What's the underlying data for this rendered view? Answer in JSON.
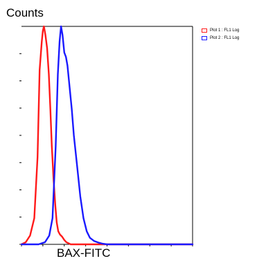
{
  "chart_data": {
    "type": "line",
    "title": "",
    "ylabel": "Counts",
    "xlabel": "BAX-FITC",
    "xlim": [
      0,
      8
    ],
    "ylim": [
      0,
      100
    ],
    "grid": false,
    "legend_position": "top-right",
    "series": [
      {
        "name": "Plot 1 : FL1 Log",
        "color": "#ff1a1a",
        "x": [
          0.0,
          0.2,
          0.4,
          0.6,
          0.75,
          0.85,
          0.95,
          1.0,
          1.05,
          1.12,
          1.2,
          1.28,
          1.35,
          1.42,
          1.5,
          1.58,
          1.65,
          1.72,
          1.8,
          1.9,
          2.0,
          2.1,
          2.2,
          2.3,
          2.5,
          3.0,
          4.0,
          8.0
        ],
        "values": [
          0,
          1,
          4,
          12,
          40,
          80,
          93,
          98,
          100,
          96,
          90,
          78,
          62,
          45,
          30,
          18,
          10,
          6,
          4.5,
          3.5,
          2,
          1,
          0.5,
          0,
          0,
          0,
          0,
          0
        ]
      },
      {
        "name": "Plot 2 : FL1 Log",
        "color": "#1a1aff",
        "x": [
          0.0,
          0.8,
          1.1,
          1.3,
          1.45,
          1.6,
          1.7,
          1.78,
          1.85,
          1.92,
          2.0,
          2.08,
          2.15,
          2.25,
          2.35,
          2.45,
          2.6,
          2.75,
          2.9,
          3.05,
          3.2,
          3.4,
          3.6,
          3.8,
          4.0,
          5.0,
          8.0
        ],
        "values": [
          0,
          0,
          1,
          4,
          12,
          45,
          78,
          93,
          100,
          96,
          88,
          86,
          82,
          72,
          62,
          50,
          36,
          22,
          12,
          6,
          3,
          1.5,
          0.8,
          0.3,
          0,
          0,
          0
        ]
      }
    ]
  },
  "legend": {
    "items": [
      {
        "label": "Plot 1 : FL1 Log",
        "color": "#ff1a1a"
      },
      {
        "label": "Plot 2 : FL1 Log",
        "color": "#1a1aff"
      }
    ]
  }
}
